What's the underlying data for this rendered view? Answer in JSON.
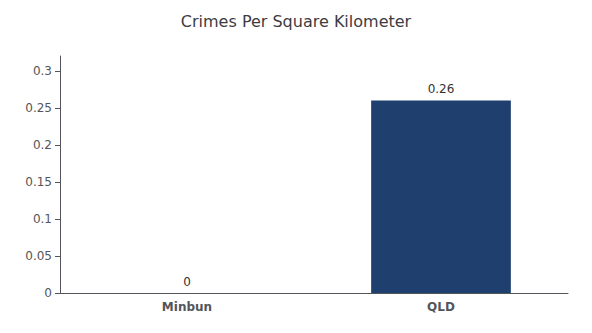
{
  "chart_data": {
    "type": "bar",
    "title": "Crimes Per Square Kilometer",
    "categories": [
      "Minbun",
      "QLD"
    ],
    "values": [
      0,
      0.26
    ],
    "color": "#1f3f6e",
    "ylim": [
      0,
      0.32
    ],
    "yticks": [
      0,
      0.05,
      0.1,
      0.15,
      0.2,
      0.25,
      0.3
    ],
    "grid": false,
    "data_labels": true
  }
}
